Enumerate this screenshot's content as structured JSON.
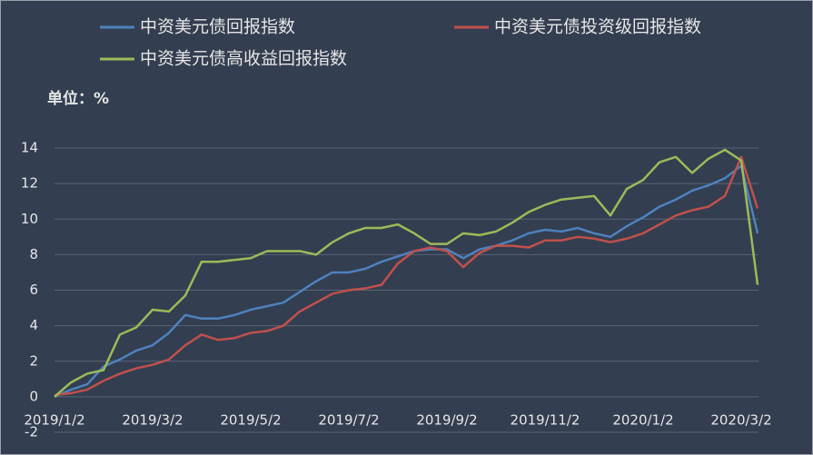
{
  "chart_data": {
    "type": "line",
    "unit_label": "单位：%",
    "categories": [
      "2019/1/2",
      null,
      null,
      null,
      null,
      null,
      "2019/3/2",
      null,
      null,
      null,
      null,
      null,
      "2019/5/2",
      null,
      null,
      null,
      null,
      null,
      "2019/7/2",
      null,
      null,
      null,
      null,
      null,
      "2019/9/2",
      null,
      null,
      null,
      null,
      null,
      "2019/11/2",
      null,
      null,
      null,
      null,
      null,
      "2020/1/2",
      null,
      null,
      null,
      null,
      null,
      "2020/3/2",
      null
    ],
    "series": [
      {
        "name": "中资美元债回报指数",
        "color": "#4f81bd",
        "values": [
          0,
          0.4,
          0.7,
          1.7,
          2.1,
          2.6,
          2.9,
          3.6,
          4.6,
          4.4,
          4.4,
          4.6,
          4.9,
          5.1,
          5.3,
          5.9,
          6.5,
          7.0,
          7.0,
          7.2,
          7.6,
          7.9,
          8.2,
          8.3,
          8.3,
          7.8,
          8.3,
          8.5,
          8.8,
          9.2,
          9.4,
          9.3,
          9.5,
          9.2,
          9.0,
          9.6,
          10.1,
          10.7,
          11.1,
          11.6,
          11.9,
          12.3,
          13.0,
          9.2
        ]
      },
      {
        "name": "中资美元债投资级回报指数",
        "color": "#c0504d",
        "values": [
          0.1,
          0.2,
          0.4,
          0.9,
          1.3,
          1.6,
          1.8,
          2.1,
          2.9,
          3.5,
          3.2,
          3.3,
          3.6,
          3.7,
          4.0,
          4.8,
          5.3,
          5.8,
          6.0,
          6.1,
          6.3,
          7.5,
          8.2,
          8.4,
          8.2,
          7.3,
          8.1,
          8.5,
          8.5,
          8.4,
          8.8,
          8.8,
          9.0,
          8.9,
          8.7,
          8.9,
          9.2,
          9.7,
          10.2,
          10.5,
          10.7,
          11.3,
          13.5,
          10.6
        ]
      },
      {
        "name": "中资美元债高收益回报指数",
        "color": "#9bbb59",
        "values": [
          0,
          0.8,
          1.3,
          1.5,
          3.5,
          3.9,
          4.9,
          4.8,
          5.7,
          7.6,
          7.6,
          7.7,
          7.8,
          8.2,
          8.2,
          8.2,
          8.0,
          8.7,
          9.2,
          9.5,
          9.5,
          9.7,
          9.2,
          8.6,
          8.6,
          9.2,
          9.1,
          9.3,
          9.8,
          10.4,
          10.8,
          11.1,
          11.2,
          11.3,
          10.2,
          11.7,
          12.2,
          13.2,
          13.5,
          12.6,
          13.4,
          13.9,
          13.3,
          6.3
        ]
      }
    ],
    "ylim": [
      -2,
      14
    ],
    "yticks": [
      -2,
      0,
      2,
      4,
      6,
      8,
      10,
      12,
      14
    ],
    "grid": true
  }
}
